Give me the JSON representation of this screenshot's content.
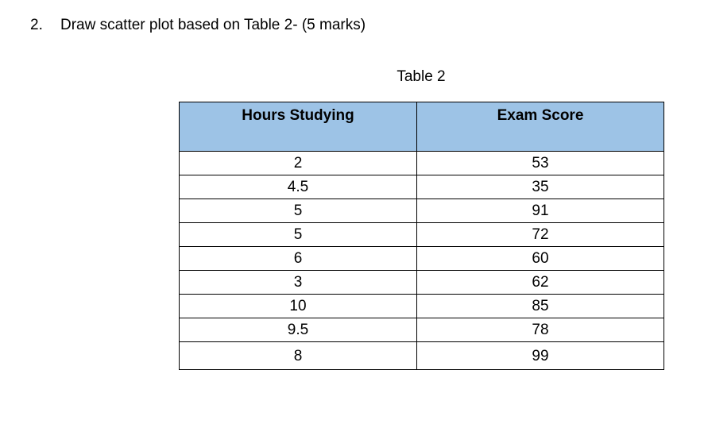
{
  "question": {
    "number": "2.",
    "text": "Draw scatter plot based on Table 2- (5 marks)"
  },
  "table": {
    "caption": "Table 2",
    "header_fill": "#9dc3e6",
    "headers": [
      "Hours Studying",
      "Exam Score"
    ],
    "rows": [
      [
        "2",
        "53"
      ],
      [
        "4.5",
        "35"
      ],
      [
        "5",
        "91"
      ],
      [
        "5",
        "72"
      ],
      [
        "6",
        "60"
      ],
      [
        "3",
        "62"
      ],
      [
        "10",
        "85"
      ],
      [
        "9.5",
        "78"
      ],
      [
        "8",
        "99"
      ]
    ]
  }
}
